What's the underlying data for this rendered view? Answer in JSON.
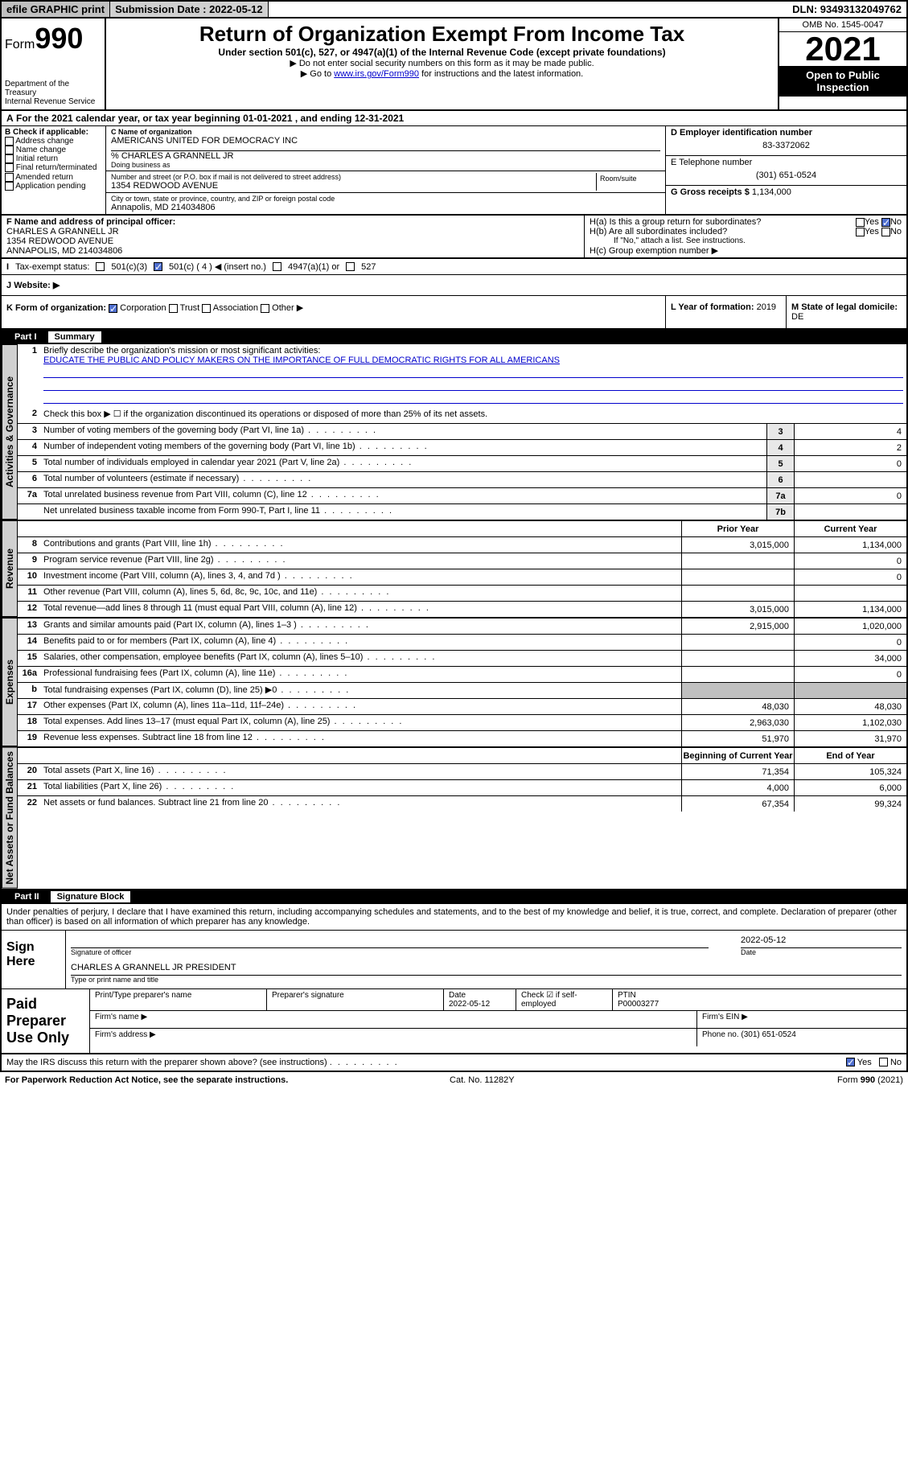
{
  "topbar": {
    "efile": "efile GRAPHIC print",
    "sub_label": "Submission Date :",
    "sub_date": "2022-05-12",
    "dln": "DLN: 93493132049762"
  },
  "header": {
    "form_prefix": "Form",
    "form_num": "990",
    "dept": "Department of the Treasury",
    "irs": "Internal Revenue Service",
    "title": "Return of Organization Exempt From Income Tax",
    "sub1": "Under section 501(c), 527, or 4947(a)(1) of the Internal Revenue Code (except private foundations)",
    "sub2": "▶ Do not enter social security numbers on this form as it may be made public.",
    "sub3_pre": "▶ Go to ",
    "sub3_link": "www.irs.gov/Form990",
    "sub3_post": " for instructions and the latest information.",
    "omb": "OMB No. 1545-0047",
    "year": "2021",
    "open": "Open to Public Inspection"
  },
  "A": {
    "text": "For the 2021 calendar year, or tax year beginning 01-01-2021   , and ending 12-31-2021"
  },
  "B": {
    "hdr": "B Check if applicable:",
    "items": [
      "Address change",
      "Name change",
      "Initial return",
      "Final return/terminated",
      "Amended return",
      "Application pending"
    ]
  },
  "C": {
    "name_lbl": "C Name of organization",
    "name": "AMERICANS UNITED FOR DEMOCRACY INC",
    "care": "% CHARLES A GRANNELL JR",
    "dba": "Doing business as",
    "addr_lbl": "Number and street (or P.O. box if mail is not delivered to street address)",
    "room": "Room/suite",
    "addr": "1354 REDWOOD AVENUE",
    "city_lbl": "City or town, state or province, country, and ZIP or foreign postal code",
    "city": "Annapolis, MD  214034806"
  },
  "D": {
    "lbl": "D Employer identification number",
    "val": "83-3372062"
  },
  "E": {
    "lbl": "E Telephone number",
    "val": "(301) 651-0524"
  },
  "G": {
    "lbl": "G Gross receipts $",
    "val": "1,134,000"
  },
  "F": {
    "lbl": "F  Name and address of principal officer:",
    "name": "CHARLES A GRANNELL JR",
    "addr1": "1354 REDWOOD AVENUE",
    "addr2": "ANNAPOLIS, MD  214034806"
  },
  "H": {
    "a": "H(a)  Is this a group return for subordinates?",
    "b": "H(b)  Are all subordinates included?",
    "ifno": "If \"No,\" attach a list. See instructions.",
    "c": "H(c)  Group exemption number ▶",
    "yes": "Yes",
    "no": "No"
  },
  "I": {
    "lbl": "Tax-exempt status:",
    "opts": [
      "501(c)(3)",
      "501(c) ( 4 ) ◀ (insert no.)",
      "4947(a)(1) or",
      "527"
    ]
  },
  "J": {
    "lbl": "Website: ▶"
  },
  "K": {
    "lbl": "K Form of organization:",
    "opts": [
      "Corporation",
      "Trust",
      "Association",
      "Other ▶"
    ]
  },
  "L": {
    "lbl": "L Year of formation:",
    "val": "2019"
  },
  "M": {
    "lbl": "M State of legal domicile:",
    "val": "DE"
  },
  "part1": {
    "num": "Part I",
    "title": "Summary",
    "l1": "Briefly describe the organization's mission or most significant activities:",
    "mission": "EDUCATE THE PUBLIC AND POLICY MAKERS ON THE IMPORTANCE OF FULL DEMOCRATIC RIGHTS FOR ALL AMERICANS",
    "l2": "Check this box ▶ ☐  if the organization discontinued its operations or disposed of more than 25% of its net assets.",
    "lines_gov": [
      {
        "n": "3",
        "t": "Number of voting members of the governing body (Part VI, line 1a)",
        "b": "3",
        "v": "4"
      },
      {
        "n": "4",
        "t": "Number of independent voting members of the governing body (Part VI, line 1b)",
        "b": "4",
        "v": "2"
      },
      {
        "n": "5",
        "t": "Total number of individuals employed in calendar year 2021 (Part V, line 2a)",
        "b": "5",
        "v": "0"
      },
      {
        "n": "6",
        "t": "Total number of volunteers (estimate if necessary)",
        "b": "6",
        "v": ""
      },
      {
        "n": "7a",
        "t": "Total unrelated business revenue from Part VIII, column (C), line 12",
        "b": "7a",
        "v": "0"
      },
      {
        "n": "",
        "t": "Net unrelated business taxable income from Form 990-T, Part I, line 11",
        "b": "7b",
        "v": ""
      }
    ],
    "col_hdrs": {
      "prior": "Prior Year",
      "curr": "Current Year",
      "boy": "Beginning of Current Year",
      "eoy": "End of Year"
    },
    "rev": [
      {
        "n": "8",
        "t": "Contributions and grants (Part VIII, line 1h)",
        "p": "3,015,000",
        "c": "1,134,000"
      },
      {
        "n": "9",
        "t": "Program service revenue (Part VIII, line 2g)",
        "p": "",
        "c": "0"
      },
      {
        "n": "10",
        "t": "Investment income (Part VIII, column (A), lines 3, 4, and 7d )",
        "p": "",
        "c": "0"
      },
      {
        "n": "11",
        "t": "Other revenue (Part VIII, column (A), lines 5, 6d, 8c, 9c, 10c, and 11e)",
        "p": "",
        "c": ""
      },
      {
        "n": "12",
        "t": "Total revenue—add lines 8 through 11 (must equal Part VIII, column (A), line 12)",
        "p": "3,015,000",
        "c": "1,134,000"
      }
    ],
    "exp": [
      {
        "n": "13",
        "t": "Grants and similar amounts paid (Part IX, column (A), lines 1–3 )",
        "p": "2,915,000",
        "c": "1,020,000"
      },
      {
        "n": "14",
        "t": "Benefits paid to or for members (Part IX, column (A), line 4)",
        "p": "",
        "c": "0"
      },
      {
        "n": "15",
        "t": "Salaries, other compensation, employee benefits (Part IX, column (A), lines 5–10)",
        "p": "",
        "c": "34,000"
      },
      {
        "n": "16a",
        "t": "Professional fundraising fees (Part IX, column (A), line 11e)",
        "p": "",
        "c": "0"
      },
      {
        "n": "b",
        "t": "Total fundraising expenses (Part IX, column (D), line 25) ▶0",
        "p": "shade",
        "c": "shade"
      },
      {
        "n": "17",
        "t": "Other expenses (Part IX, column (A), lines 11a–11d, 11f–24e)",
        "p": "48,030",
        "c": "48,030"
      },
      {
        "n": "18",
        "t": "Total expenses. Add lines 13–17 (must equal Part IX, column (A), line 25)",
        "p": "2,963,030",
        "c": "1,102,030"
      },
      {
        "n": "19",
        "t": "Revenue less expenses. Subtract line 18 from line 12",
        "p": "51,970",
        "c": "31,970"
      }
    ],
    "net": [
      {
        "n": "20",
        "t": "Total assets (Part X, line 16)",
        "p": "71,354",
        "c": "105,324"
      },
      {
        "n": "21",
        "t": "Total liabilities (Part X, line 26)",
        "p": "4,000",
        "c": "6,000"
      },
      {
        "n": "22",
        "t": "Net assets or fund balances. Subtract line 21 from line 20",
        "p": "67,354",
        "c": "99,324"
      }
    ],
    "tabs": {
      "gov": "Activities & Governance",
      "rev": "Revenue",
      "exp": "Expenses",
      "net": "Net Assets or Fund Balances"
    }
  },
  "part2": {
    "num": "Part II",
    "title": "Signature Block",
    "decl": "Under penalties of perjury, I declare that I have examined this return, including accompanying schedules and statements, and to the best of my knowledge and belief, it is true, correct, and complete. Declaration of preparer (other than officer) is based on all information of which preparer has any knowledge.",
    "sign_here": "Sign Here",
    "sig_officer": "Signature of officer",
    "date": "Date",
    "sig_date": "2022-05-12",
    "name_title": "CHARLES A GRANNELL JR  PRESIDENT",
    "name_lbl": "Type or print name and title",
    "paid": "Paid Preparer Use Only",
    "prep_name": "Print/Type preparer's name",
    "prep_sig": "Preparer's signature",
    "prep_date_lbl": "Date",
    "prep_date": "2022-05-12",
    "check_self": "Check ☑ if self-employed",
    "ptin_lbl": "PTIN",
    "ptin": "P00003277",
    "firm_name": "Firm's name  ▶",
    "firm_ein": "Firm's EIN ▶",
    "firm_addr": "Firm's address ▶",
    "phone": "Phone no. (301) 651-0524",
    "may_irs": "May the IRS discuss this return with the preparer shown above? (see instructions)",
    "yes": "Yes",
    "no": "No"
  },
  "footer": {
    "left": "For Paperwork Reduction Act Notice, see the separate instructions.",
    "mid": "Cat. No. 11282Y",
    "right": "Form 990 (2021)"
  }
}
